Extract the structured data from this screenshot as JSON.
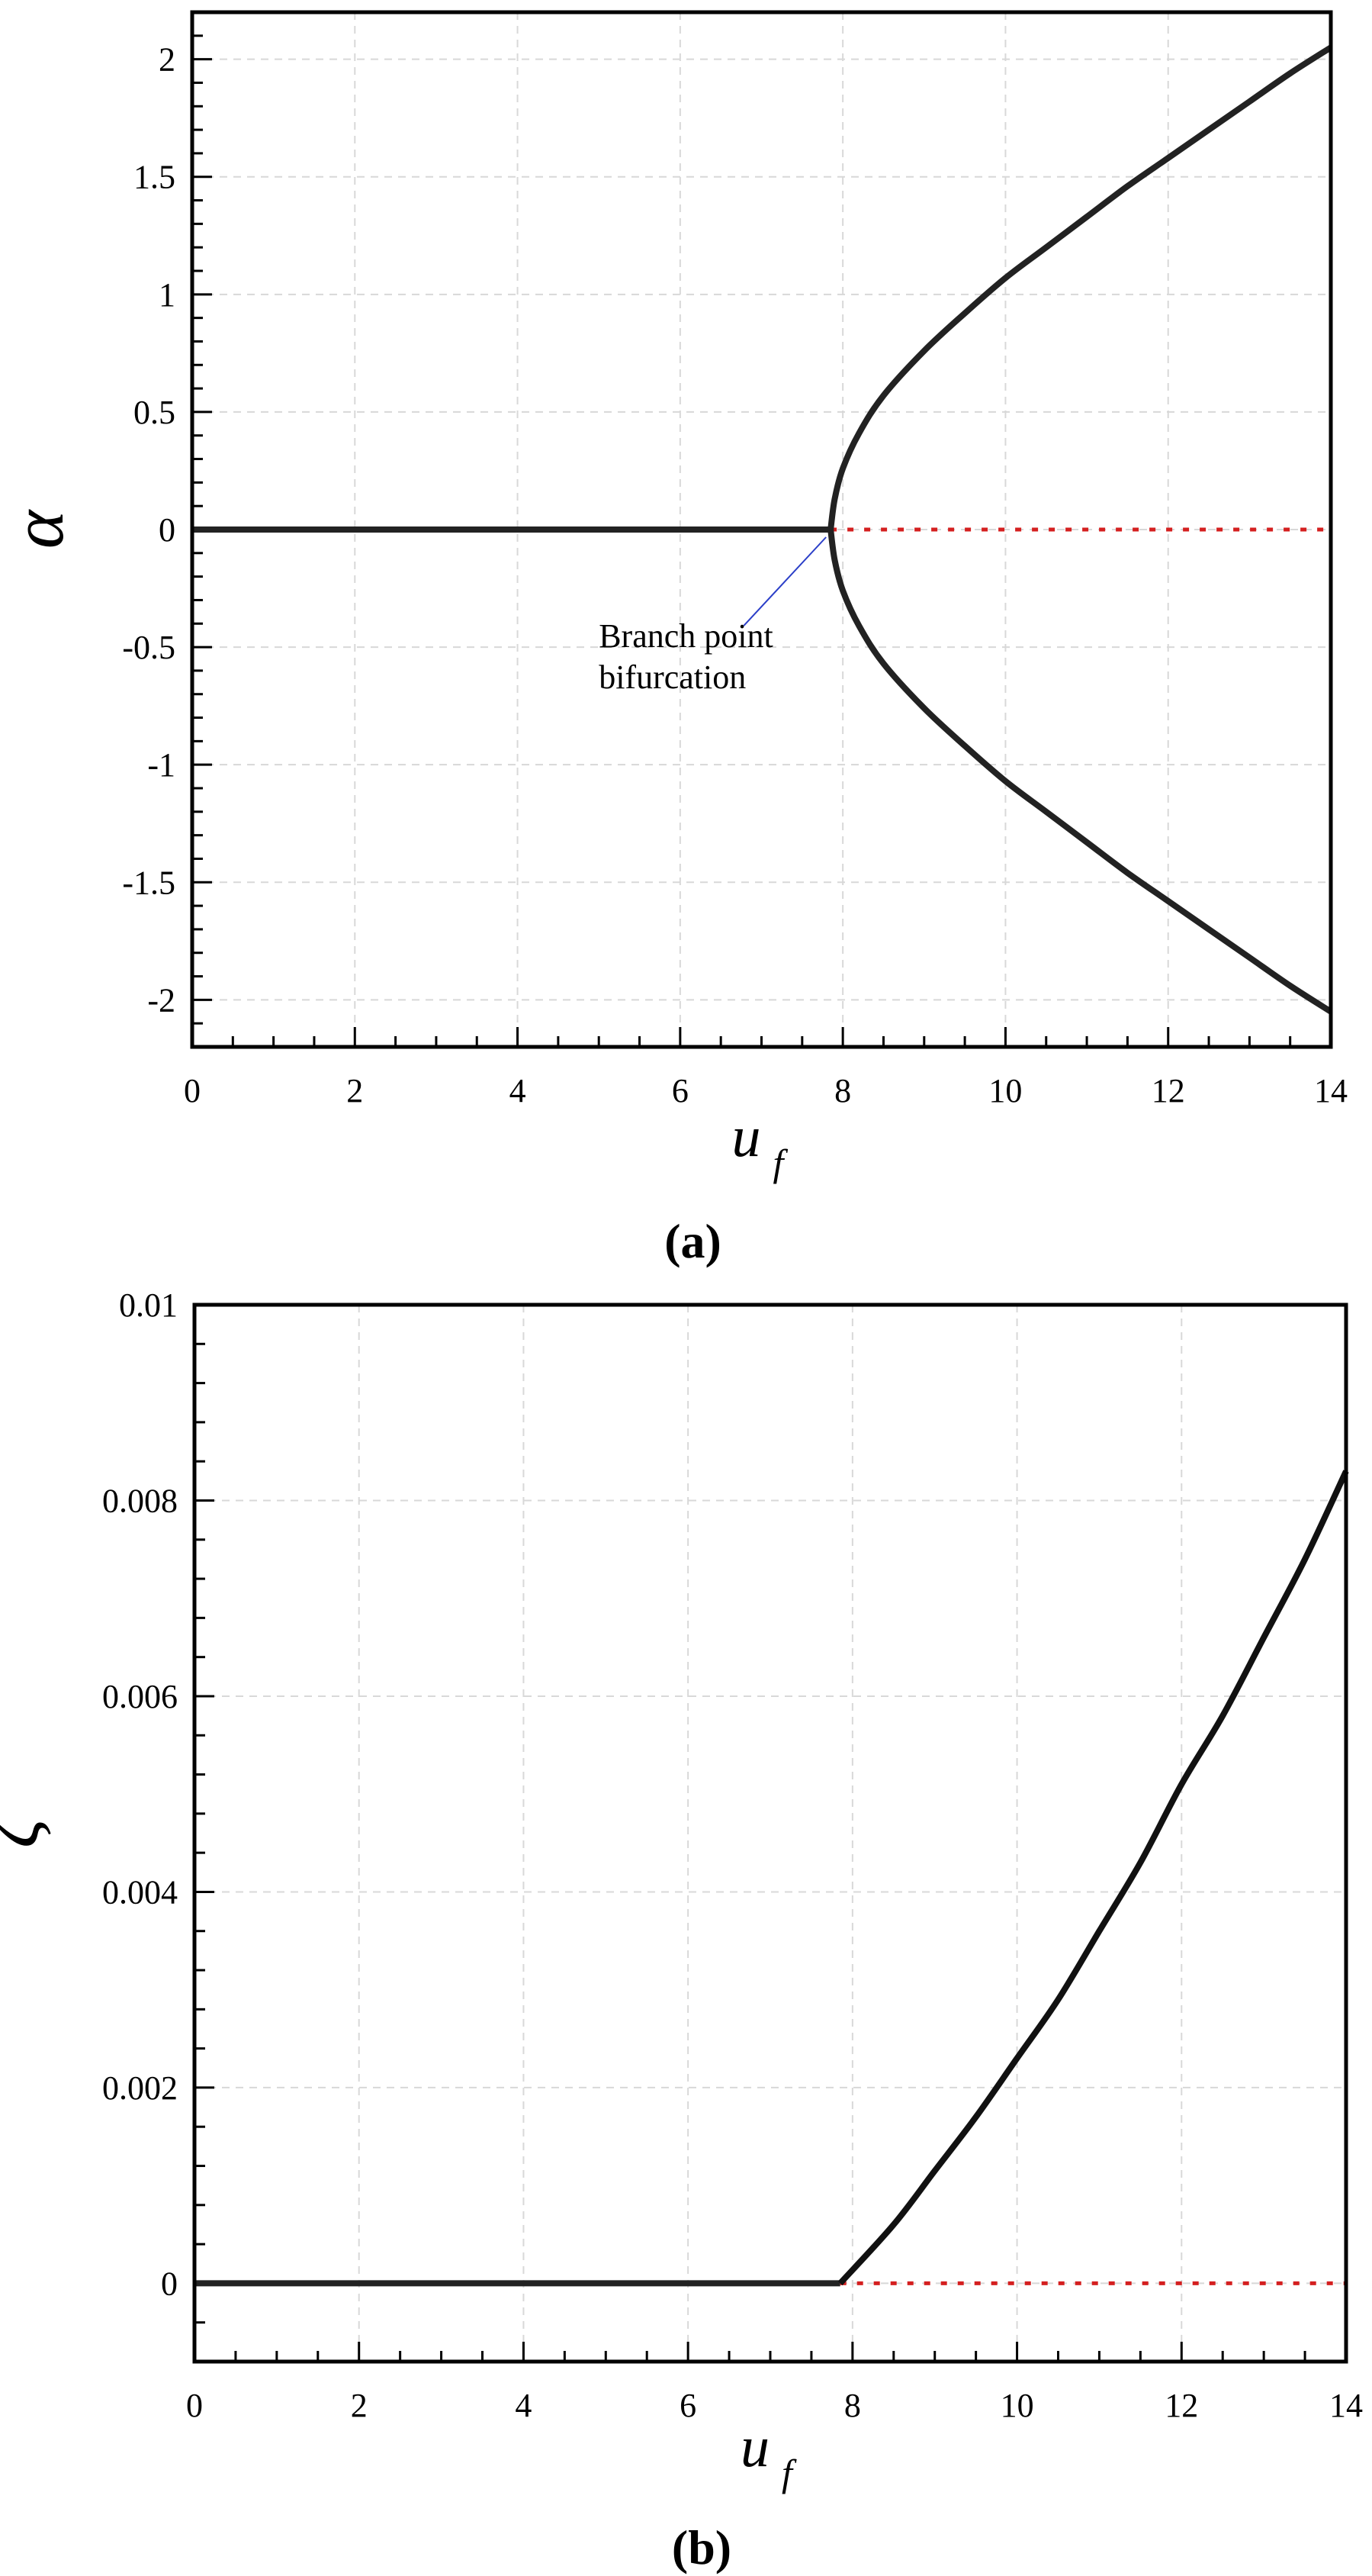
{
  "chart_data": [
    {
      "type": "line",
      "panel_caption": "(a)",
      "xlabel": "u",
      "xlabel_sub": "f",
      "ylabel": "α",
      "xlim": [
        0,
        14
      ],
      "ylim": [
        -2.2,
        2.2
      ],
      "xticks": [
        "0",
        "2",
        "4",
        "6",
        "8",
        "10",
        "12",
        "14"
      ],
      "yticks": [
        "-2",
        "-1.5",
        "-1",
        "-0.5",
        "0",
        "0.5",
        "1",
        "1.5",
        "2"
      ],
      "xtick_values": [
        0,
        2,
        4,
        6,
        8,
        10,
        12,
        14
      ],
      "ytick_values": [
        -2,
        -1.5,
        -1,
        -0.5,
        0,
        0.5,
        1,
        1.5,
        2
      ],
      "grid": true,
      "bifurcation_point": {
        "x": 7.85,
        "y": 0
      },
      "series": [
        {
          "style": "solid",
          "color": "#222222",
          "x": [
            0,
            7.85
          ],
          "y": [
            0,
            0
          ]
        },
        {
          "style": "dotted",
          "color": "#d42020",
          "x": [
            7.85,
            14
          ],
          "y": [
            0,
            0
          ]
        },
        {
          "style": "solid",
          "color": "#222222",
          "x": [
            7.85,
            7.9,
            8.0,
            8.2,
            8.5,
            9.0,
            9.5,
            10.0,
            10.5,
            11.0,
            11.5,
            12.0,
            12.5,
            13.0,
            13.5,
            14.0
          ],
          "y": [
            0.0,
            0.13,
            0.26,
            0.41,
            0.57,
            0.76,
            0.92,
            1.07,
            1.2,
            1.33,
            1.46,
            1.58,
            1.7,
            1.82,
            1.94,
            2.05
          ]
        },
        {
          "style": "solid",
          "color": "#222222",
          "x": [
            7.85,
            7.9,
            8.0,
            8.2,
            8.5,
            9.0,
            9.5,
            10.0,
            10.5,
            11.0,
            11.5,
            12.0,
            12.5,
            13.0,
            13.5,
            14.0
          ],
          "y": [
            0.0,
            -0.13,
            -0.26,
            -0.41,
            -0.57,
            -0.76,
            -0.92,
            -1.07,
            -1.2,
            -1.33,
            -1.46,
            -1.58,
            -1.7,
            -1.82,
            -1.94,
            -2.05
          ]
        }
      ],
      "annotations": [
        {
          "text_lines": [
            "Branch point",
            "bifurcation"
          ],
          "points_to": {
            "x": 7.85,
            "y": 0
          },
          "text_at": {
            "x": 5.0,
            "y": -0.5
          }
        }
      ]
    },
    {
      "type": "line",
      "panel_caption": "(b)",
      "xlabel": "u",
      "xlabel_sub": "f",
      "ylabel": "ζ",
      "xlim": [
        0,
        14
      ],
      "ylim": [
        -0.0008,
        0.01
      ],
      "xticks": [
        "0",
        "2",
        "4",
        "6",
        "8",
        "10",
        "12",
        "14"
      ],
      "yticks": [
        "0",
        "0.002",
        "0.004",
        "0.006",
        "0.008",
        "0.01"
      ],
      "xtick_values": [
        0,
        2,
        4,
        6,
        8,
        10,
        12,
        14
      ],
      "ytick_values": [
        0,
        0.002,
        0.004,
        0.006,
        0.008,
        0.01
      ],
      "grid": true,
      "series": [
        {
          "style": "solid",
          "color": "#222222",
          "x": [
            0,
            7.85
          ],
          "y": [
            0,
            0
          ]
        },
        {
          "style": "dotted",
          "color": "#d42020",
          "x": [
            7.85,
            14
          ],
          "y": [
            0,
            0
          ]
        },
        {
          "style": "solid",
          "color": "#111111",
          "x": [
            7.85,
            8.5,
            9.0,
            9.5,
            10.0,
            10.5,
            11.0,
            11.5,
            12.0,
            12.5,
            13.0,
            13.5,
            14.0
          ],
          "y": [
            0.0,
            0.0006,
            0.00115,
            0.0017,
            0.0023,
            0.0029,
            0.0036,
            0.0043,
            0.0051,
            0.0058,
            0.0066,
            0.0074,
            0.0083
          ]
        }
      ]
    }
  ]
}
